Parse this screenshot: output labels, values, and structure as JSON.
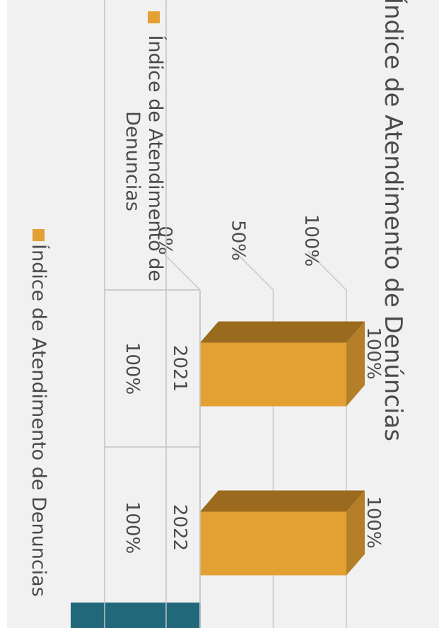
{
  "chart_data": {
    "type": "bar",
    "title": "Índice de Atendimento de Denúncias",
    "categories": [
      "2021",
      "2022"
    ],
    "series": [
      {
        "name": "Índice de Atendimento de Denuncias",
        "values": [
          100,
          100
        ],
        "data_labels": [
          "100%",
          "100%"
        ],
        "color": "#e3a033"
      }
    ],
    "yticks": [
      "0%",
      "50%",
      "100%"
    ],
    "ylim": [
      0,
      100
    ],
    "data_table": {
      "row_header": "Índice de Atendimento de Denuncias",
      "cells": [
        "100%",
        "100%"
      ]
    },
    "legend_label": "Índice de Atendimento de Denuncias",
    "legend_position": "bottom",
    "grid": true,
    "style": "3d-column"
  }
}
